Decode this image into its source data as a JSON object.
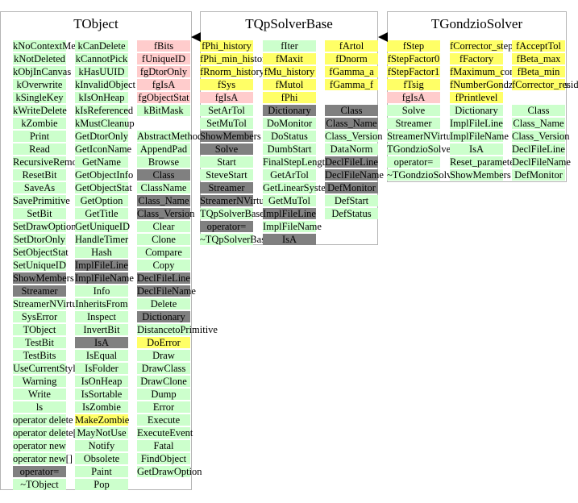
{
  "colors": {
    "member": "#ccffcc",
    "data_member": "#ffff66",
    "private_member": "#ffcccc",
    "inherited": "#808080"
  },
  "tobject": {
    "title": "TObject",
    "col1": [
      {
        "t": "kNoContextMenu",
        "c": "g"
      },
      {
        "t": "kNotDeleted",
        "c": "g"
      },
      {
        "t": "kObjInCanvas",
        "c": "g"
      },
      {
        "t": "kOverwrite",
        "c": "g"
      },
      {
        "t": "kSingleKey",
        "c": "g"
      },
      {
        "t": "kWriteDelete",
        "c": "g"
      },
      {
        "t": "kZombie",
        "c": "g"
      },
      {
        "t": "Print",
        "c": "g"
      },
      {
        "t": "Read",
        "c": "g"
      },
      {
        "t": "RecursiveRemove",
        "c": "g"
      },
      {
        "t": "ResetBit",
        "c": "g"
      },
      {
        "t": "SaveAs",
        "c": "g"
      },
      {
        "t": "SavePrimitive",
        "c": "g"
      },
      {
        "t": "SetBit",
        "c": "g"
      },
      {
        "t": "SetDrawOption",
        "c": "g"
      },
      {
        "t": "SetDtorOnly",
        "c": "g"
      },
      {
        "t": "SetObjectStat",
        "c": "g"
      },
      {
        "t": "SetUniqueID",
        "c": "g"
      },
      {
        "t": "ShowMembers",
        "c": "d"
      },
      {
        "t": "Streamer",
        "c": "d"
      },
      {
        "t": "StreamerNVirtual",
        "c": "g"
      },
      {
        "t": "SysError",
        "c": "g"
      },
      {
        "t": "TObject",
        "c": "g"
      },
      {
        "t": "TestBit",
        "c": "g"
      },
      {
        "t": "TestBits",
        "c": "g"
      },
      {
        "t": "UseCurrentStyle",
        "c": "g"
      },
      {
        "t": "Warning",
        "c": "g"
      },
      {
        "t": "Write",
        "c": "g"
      },
      {
        "t": "ls",
        "c": "g"
      },
      {
        "t": "operator delete",
        "c": "g"
      },
      {
        "t": "operator delete[]",
        "c": "g"
      },
      {
        "t": "operator new",
        "c": "g"
      },
      {
        "t": "operator new[]",
        "c": "g"
      },
      {
        "t": "operator=",
        "c": "d"
      },
      {
        "t": "~TObject",
        "c": "g"
      }
    ],
    "col2": [
      {
        "t": "kCanDelete",
        "c": "g"
      },
      {
        "t": "kCannotPick",
        "c": "g"
      },
      {
        "t": "kHasUUID",
        "c": "g"
      },
      {
        "t": "kInvalidObject",
        "c": "g"
      },
      {
        "t": "kIsOnHeap",
        "c": "g"
      },
      {
        "t": "kIsReferenced",
        "c": "g"
      },
      {
        "t": "kMustCleanup",
        "c": "g"
      },
      {
        "t": "GetDtorOnly",
        "c": "g"
      },
      {
        "t": "GetIconName",
        "c": "g"
      },
      {
        "t": "GetName",
        "c": "g"
      },
      {
        "t": "GetObjectInfo",
        "c": "g"
      },
      {
        "t": "GetObjectStat",
        "c": "g"
      },
      {
        "t": "GetOption",
        "c": "g"
      },
      {
        "t": "GetTitle",
        "c": "g"
      },
      {
        "t": "GetUniqueID",
        "c": "g"
      },
      {
        "t": "HandleTimer",
        "c": "g"
      },
      {
        "t": "Hash",
        "c": "g"
      },
      {
        "t": "ImplFileLine",
        "c": "d"
      },
      {
        "t": "ImplFileName",
        "c": "d"
      },
      {
        "t": "Info",
        "c": "g"
      },
      {
        "t": "InheritsFrom",
        "c": "g"
      },
      {
        "t": "Inspect",
        "c": "g"
      },
      {
        "t": "InvertBit",
        "c": "g"
      },
      {
        "t": "IsA",
        "c": "d"
      },
      {
        "t": "IsEqual",
        "c": "g"
      },
      {
        "t": "IsFolder",
        "c": "g"
      },
      {
        "t": "IsOnHeap",
        "c": "g"
      },
      {
        "t": "IsSortable",
        "c": "g"
      },
      {
        "t": "IsZombie",
        "c": "g"
      },
      {
        "t": "MakeZombie",
        "c": "y"
      },
      {
        "t": "MayNotUse",
        "c": "g"
      },
      {
        "t": "Notify",
        "c": "g"
      },
      {
        "t": "Obsolete",
        "c": "g"
      },
      {
        "t": "Paint",
        "c": "g"
      },
      {
        "t": "Pop",
        "c": "g"
      }
    ],
    "col3": [
      {
        "t": "fBits",
        "c": "p"
      },
      {
        "t": "fUniqueID",
        "c": "p"
      },
      {
        "t": "fgDtorOnly",
        "c": "p"
      },
      {
        "t": "fgIsA",
        "c": "p"
      },
      {
        "t": "fgObjectStat",
        "c": "p"
      },
      {
        "t": "kBitMask",
        "c": "g"
      },
      {
        "t": "",
        "c": ""
      },
      {
        "t": "AbstractMethod",
        "c": "g"
      },
      {
        "t": "AppendPad",
        "c": "g"
      },
      {
        "t": "Browse",
        "c": "g"
      },
      {
        "t": "Class",
        "c": "d"
      },
      {
        "t": "ClassName",
        "c": "g"
      },
      {
        "t": "Class_Name",
        "c": "d"
      },
      {
        "t": "Class_Version",
        "c": "d"
      },
      {
        "t": "Clear",
        "c": "g"
      },
      {
        "t": "Clone",
        "c": "g"
      },
      {
        "t": "Compare",
        "c": "g"
      },
      {
        "t": "Copy",
        "c": "g"
      },
      {
        "t": "DeclFileLine",
        "c": "d"
      },
      {
        "t": "DeclFileName",
        "c": "d"
      },
      {
        "t": "Delete",
        "c": "g"
      },
      {
        "t": "Dictionary",
        "c": "d"
      },
      {
        "t": "DistancetoPrimitive",
        "c": "g"
      },
      {
        "t": "DoError",
        "c": "y"
      },
      {
        "t": "Draw",
        "c": "g"
      },
      {
        "t": "DrawClass",
        "c": "g"
      },
      {
        "t": "DrawClone",
        "c": "g"
      },
      {
        "t": "Dump",
        "c": "g"
      },
      {
        "t": "Error",
        "c": "g"
      },
      {
        "t": "Execute",
        "c": "g"
      },
      {
        "t": "ExecuteEvent",
        "c": "g"
      },
      {
        "t": "Fatal",
        "c": "g"
      },
      {
        "t": "FindObject",
        "c": "g"
      },
      {
        "t": "GetDrawOption",
        "c": "g"
      }
    ]
  },
  "tqp": {
    "title": "TQpSolverBase",
    "col1": [
      {
        "t": "fPhi_history",
        "c": "y"
      },
      {
        "t": "fPhi_min_history",
        "c": "y"
      },
      {
        "t": "fRnorm_history",
        "c": "y"
      },
      {
        "t": "fSys",
        "c": "y"
      },
      {
        "t": "fgIsA",
        "c": "p"
      },
      {
        "t": "SetArTol",
        "c": "g"
      },
      {
        "t": "SetMuTol",
        "c": "g"
      },
      {
        "t": "ShowMembers",
        "c": "d"
      },
      {
        "t": "Solve",
        "c": "d"
      },
      {
        "t": "Start",
        "c": "g"
      },
      {
        "t": "SteveStart",
        "c": "g"
      },
      {
        "t": "Streamer",
        "c": "d"
      },
      {
        "t": "StreamerNVirtual",
        "c": "d"
      },
      {
        "t": "TQpSolverBase",
        "c": "g"
      },
      {
        "t": "operator=",
        "c": "d"
      },
      {
        "t": "~TQpSolverBase",
        "c": "g"
      }
    ],
    "col2": [
      {
        "t": "fIter",
        "c": "g"
      },
      {
        "t": "fMaxit",
        "c": "y"
      },
      {
        "t": "fMu_history",
        "c": "y"
      },
      {
        "t": "fMutol",
        "c": "y"
      },
      {
        "t": "fPhi",
        "c": "y"
      },
      {
        "t": "Dictionary",
        "c": "d"
      },
      {
        "t": "DoMonitor",
        "c": "g"
      },
      {
        "t": "DoStatus",
        "c": "g"
      },
      {
        "t": "DumbStart",
        "c": "g"
      },
      {
        "t": "FinalStepLength",
        "c": "g"
      },
      {
        "t": "GetArTol",
        "c": "g"
      },
      {
        "t": "GetLinearSystem",
        "c": "g"
      },
      {
        "t": "GetMuTol",
        "c": "g"
      },
      {
        "t": "ImplFileLine",
        "c": "d"
      },
      {
        "t": "ImplFileName",
        "c": "g"
      },
      {
        "t": "IsA",
        "c": "d"
      }
    ],
    "col3": [
      {
        "t": "fArtol",
        "c": "y"
      },
      {
        "t": "fDnorm",
        "c": "y"
      },
      {
        "t": "fGamma_a",
        "c": "y"
      },
      {
        "t": "fGamma_f",
        "c": "y"
      },
      {
        "t": "",
        "c": ""
      },
      {
        "t": "Class",
        "c": "d"
      },
      {
        "t": "Class_Name",
        "c": "d"
      },
      {
        "t": "Class_Version",
        "c": "g"
      },
      {
        "t": "DataNorm",
        "c": "g"
      },
      {
        "t": "DeclFileLine",
        "c": "d"
      },
      {
        "t": "DeclFileName",
        "c": "d"
      },
      {
        "t": "DefMonitor",
        "c": "d"
      },
      {
        "t": "DefStart",
        "c": "g"
      },
      {
        "t": "DefStatus",
        "c": "g"
      }
    ]
  },
  "tgondzio": {
    "title": "TGondzioSolver",
    "col1": [
      {
        "t": "fStep",
        "c": "y"
      },
      {
        "t": "fStepFactor0",
        "c": "y"
      },
      {
        "t": "fStepFactor1",
        "c": "y"
      },
      {
        "t": "fTsig",
        "c": "y"
      },
      {
        "t": "fgIsA",
        "c": "p"
      },
      {
        "t": "Solve",
        "c": "g"
      },
      {
        "t": "Streamer",
        "c": "g"
      },
      {
        "t": "StreamerNVirtual",
        "c": "g"
      },
      {
        "t": "TGondzioSolver",
        "c": "g"
      },
      {
        "t": "operator=",
        "c": "g"
      },
      {
        "t": "~TGondzioSolver",
        "c": "g"
      }
    ],
    "col2": [
      {
        "t": "fCorrector_step",
        "c": "y"
      },
      {
        "t": "fFactory",
        "c": "y"
      },
      {
        "t": "fMaximum_correctors",
        "c": "y"
      },
      {
        "t": "fNumberGondzioCorrections",
        "c": "y"
      },
      {
        "t": "fPrintlevel",
        "c": "y"
      },
      {
        "t": "Dictionary",
        "c": "g"
      },
      {
        "t": "ImplFileLine",
        "c": "g"
      },
      {
        "t": "ImplFileName",
        "c": "g"
      },
      {
        "t": "IsA",
        "c": "g"
      },
      {
        "t": "Reset_parameters",
        "c": "g"
      },
      {
        "t": "ShowMembers",
        "c": "g"
      }
    ],
    "col3": [
      {
        "t": "fAcceptTol",
        "c": "y"
      },
      {
        "t": "fBeta_max",
        "c": "y"
      },
      {
        "t": "fBeta_min",
        "c": "y"
      },
      {
        "t": "fCorrector_resid",
        "c": "y"
      },
      {
        "t": "",
        "c": ""
      },
      {
        "t": "Class",
        "c": "g"
      },
      {
        "t": "Class_Name",
        "c": "g"
      },
      {
        "t": "Class_Version",
        "c": "g"
      },
      {
        "t": "DeclFileLine",
        "c": "g"
      },
      {
        "t": "DeclFileName",
        "c": "g"
      },
      {
        "t": "DefMonitor",
        "c": "g"
      }
    ]
  }
}
